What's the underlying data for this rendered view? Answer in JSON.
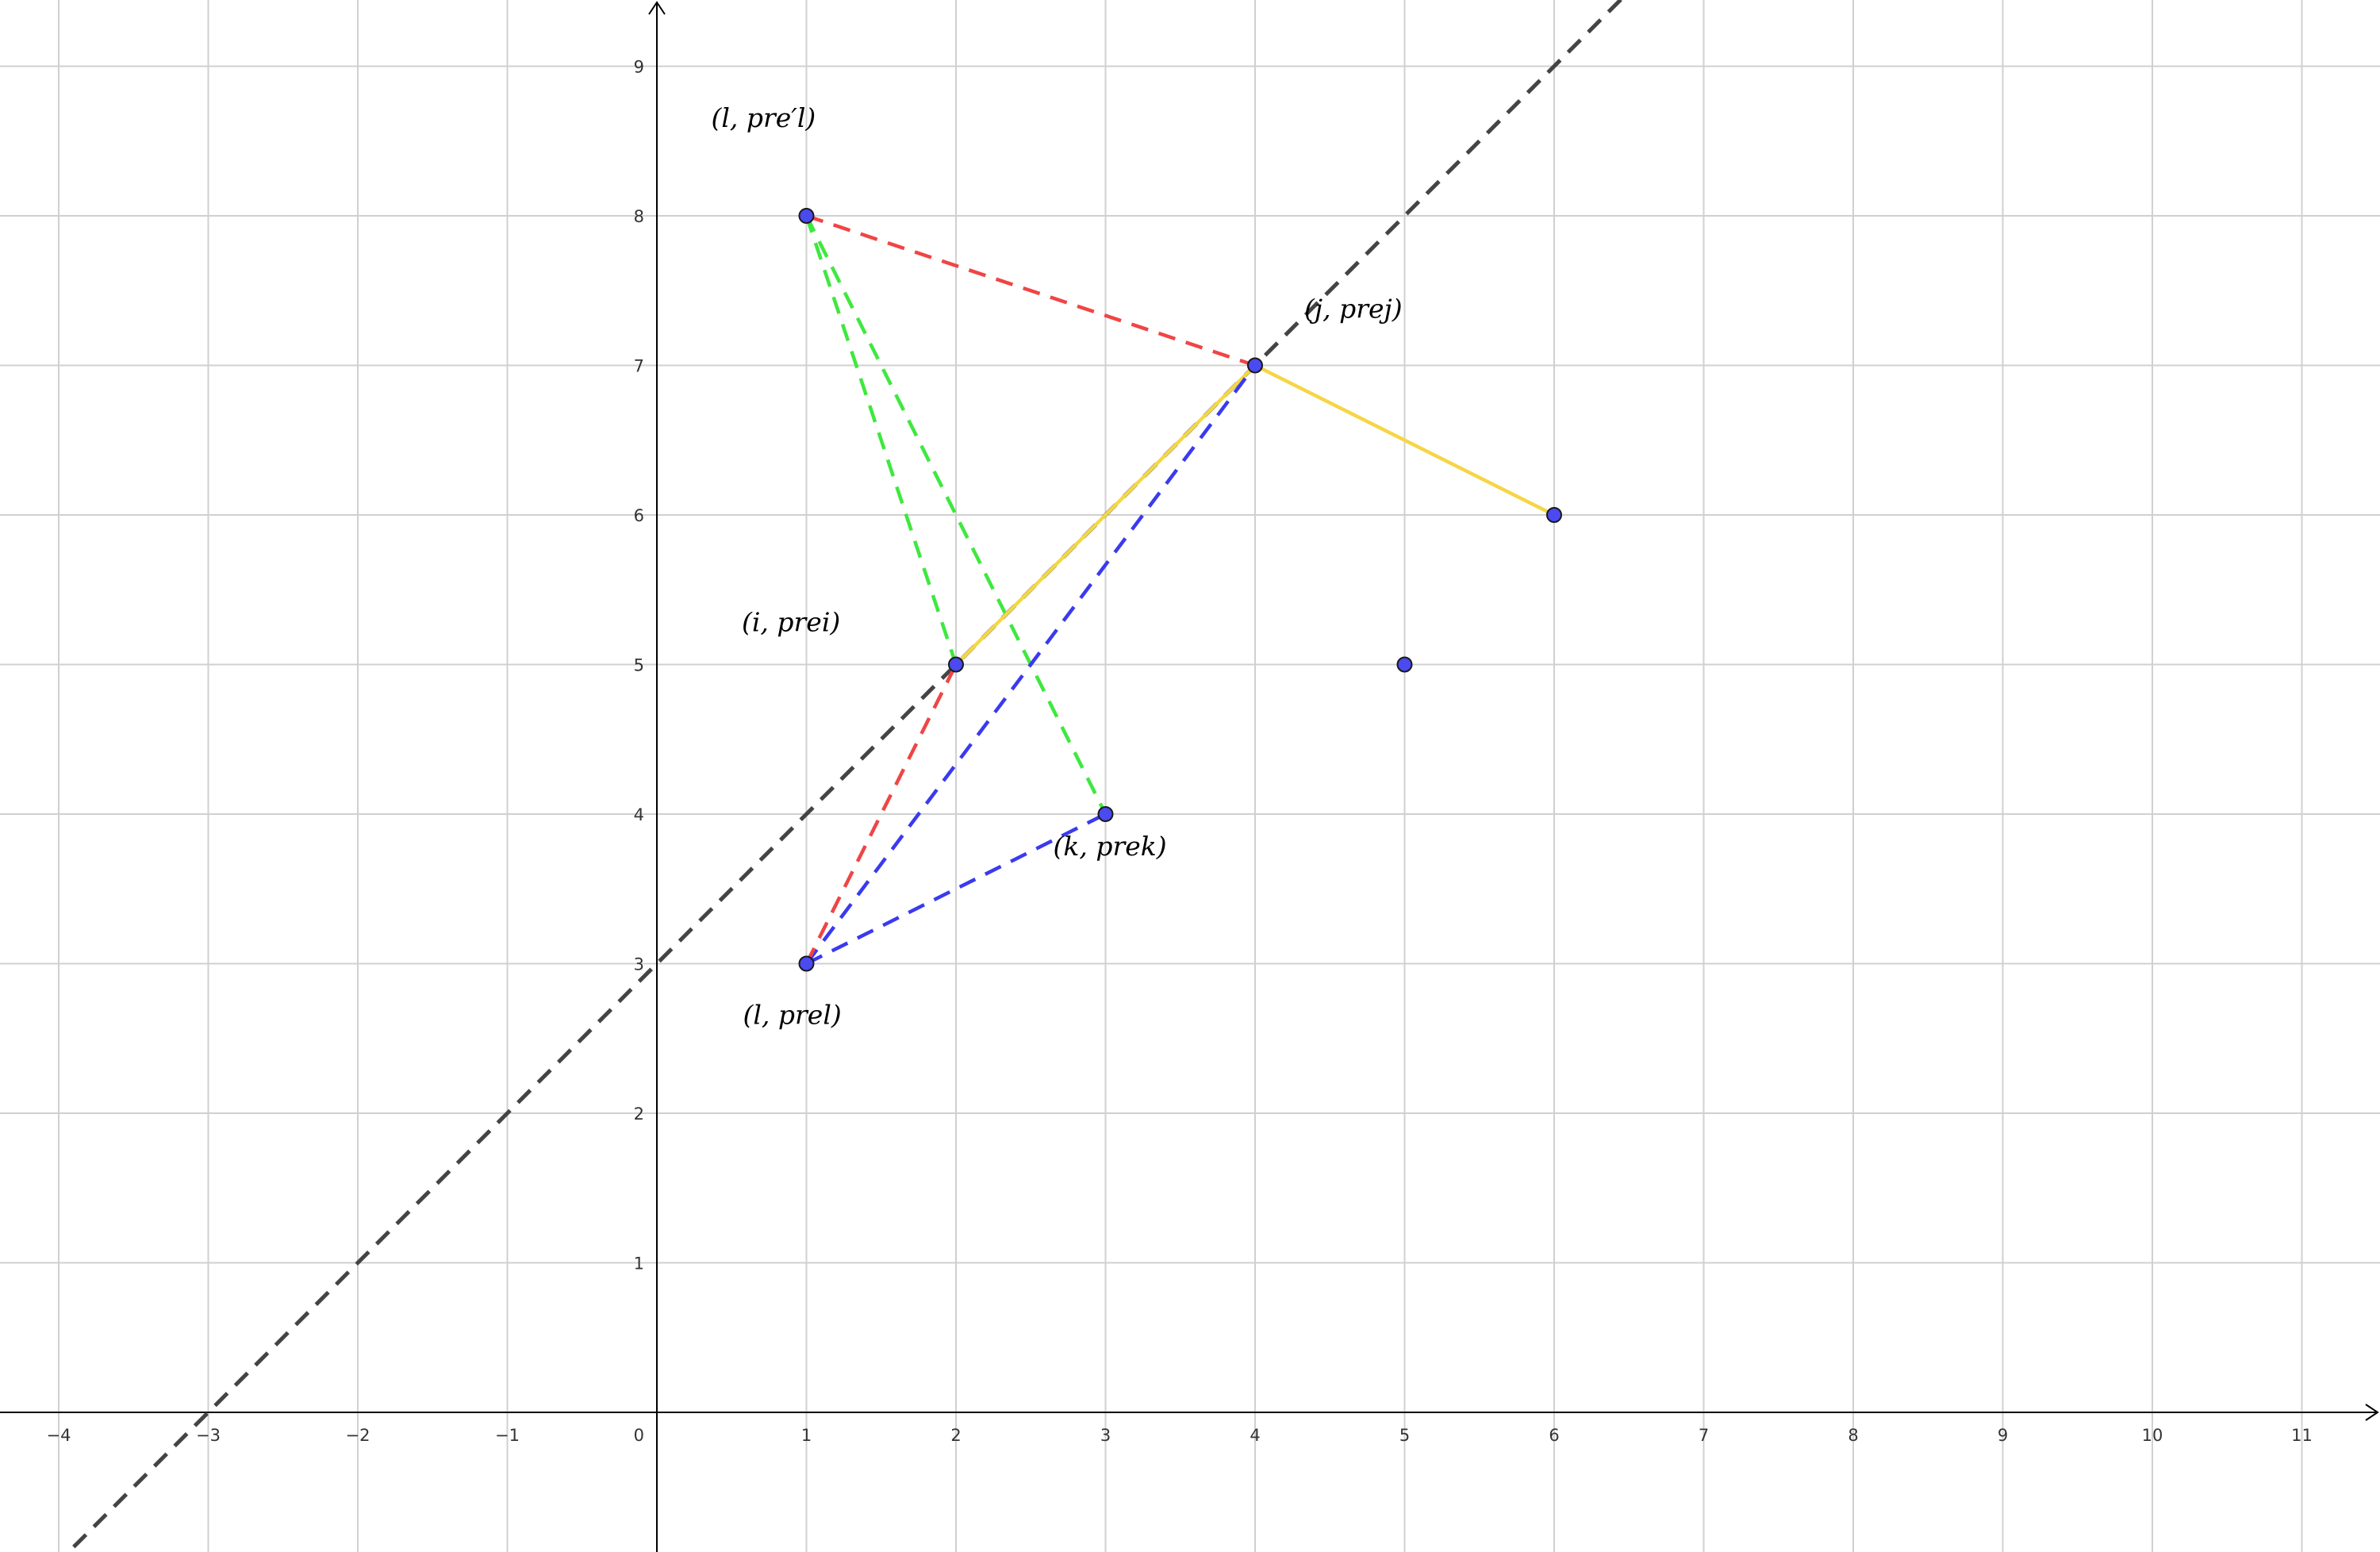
{
  "chart_data": {
    "type": "scatter",
    "title": "",
    "xlabel": "",
    "ylabel": "",
    "xlim": [
      -4,
      11
    ],
    "ylim": [
      0,
      9
    ],
    "grid": true,
    "x_ticks": [
      "−4",
      "−3",
      "−2",
      "−1",
      "1",
      "2",
      "3",
      "4",
      "5",
      "6",
      "7",
      "8",
      "9",
      "10",
      "11"
    ],
    "y_ticks": [
      "1",
      "2",
      "3",
      "4",
      "5",
      "6",
      "7",
      "8",
      "9"
    ],
    "origin_label": "0",
    "points": [
      {
        "x": 1,
        "y": 8
      },
      {
        "x": 4,
        "y": 7
      },
      {
        "x": 6,
        "y": 6
      },
      {
        "x": 2,
        "y": 5
      },
      {
        "x": 5,
        "y": 5
      },
      {
        "x": 3,
        "y": 4
      },
      {
        "x": 1,
        "y": 3
      }
    ],
    "point_labels": [
      {
        "text": "(l, pre′l)",
        "near": [
          1,
          8
        ]
      },
      {
        "text": "(j, prej)",
        "near": [
          4,
          7
        ]
      },
      {
        "text": "(i, prei)",
        "near": [
          2,
          5
        ]
      },
      {
        "text": "(k, prek)",
        "near": [
          3,
          4
        ]
      },
      {
        "text": "(l, prel)",
        "near": [
          1,
          3
        ]
      }
    ],
    "reference_line": {
      "slope": 1,
      "intercept": 3,
      "style": "dashed",
      "color": "#444444"
    },
    "segments": [
      {
        "from": [
          1,
          8
        ],
        "to": [
          4,
          7
        ],
        "color": "#f04545",
        "style": "dashed"
      },
      {
        "from": [
          1,
          8
        ],
        "to": [
          2,
          5
        ],
        "color": "#3fe83f",
        "style": "dashed"
      },
      {
        "from": [
          1,
          8
        ],
        "to": [
          3,
          4
        ],
        "color": "#3fe83f",
        "style": "dashed"
      },
      {
        "from": [
          2,
          5
        ],
        "to": [
          4,
          7
        ],
        "color": "#f5d645",
        "style": "solid"
      },
      {
        "from": [
          4,
          7
        ],
        "to": [
          6,
          6
        ],
        "color": "#f5d645",
        "style": "solid"
      },
      {
        "from": [
          1,
          3
        ],
        "to": [
          4,
          7
        ],
        "color": "#3a3af0",
        "style": "dashed"
      },
      {
        "from": [
          1,
          3
        ],
        "to": [
          3,
          4
        ],
        "color": "#3a3af0",
        "style": "dashed"
      },
      {
        "from": [
          1,
          3
        ],
        "to": [
          2,
          5
        ],
        "color": "#f04545",
        "style": "dashed"
      }
    ]
  }
}
